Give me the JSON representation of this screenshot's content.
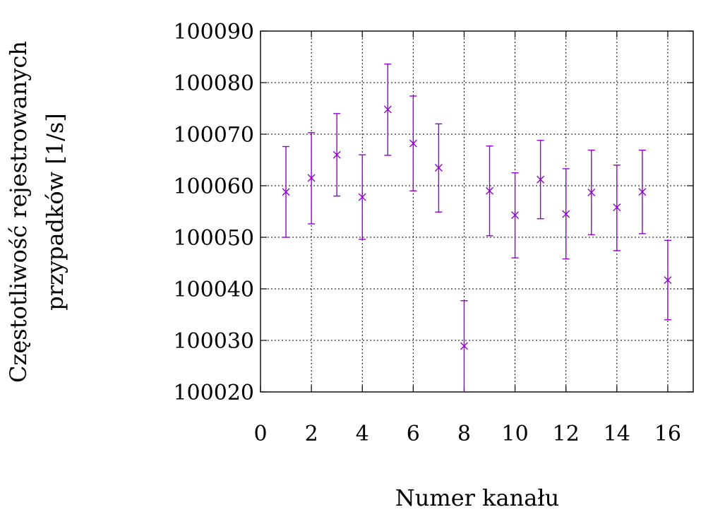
{
  "chart_data": {
    "type": "scatter",
    "title": "",
    "xlabel": "Numer kanału",
    "ylabel_lines": [
      "Częstotliwość rejestrowanych",
      "przypadków [1/s]"
    ],
    "xlim": [
      0,
      17
    ],
    "ylim": [
      100020,
      100090
    ],
    "xticks": [
      "0",
      "2",
      "4",
      "6",
      "8",
      "10",
      "12",
      "14",
      "16"
    ],
    "yticks": [
      "100020",
      "100030",
      "100040",
      "100050",
      "100060",
      "100070",
      "100080",
      "100090"
    ],
    "grid": true,
    "marker": "x",
    "color": "#9400d3",
    "points": [
      {
        "x": 1,
        "y": 100058.8,
        "err_low": 100050.0,
        "err_high": 100067.6
      },
      {
        "x": 2,
        "y": 100061.5,
        "err_low": 100052.6,
        "err_high": 100070.3
      },
      {
        "x": 3,
        "y": 100066.0,
        "err_low": 100058.0,
        "err_high": 100074.0
      },
      {
        "x": 4,
        "y": 100057.8,
        "err_low": 100049.6,
        "err_high": 100066.0
      },
      {
        "x": 5,
        "y": 100074.8,
        "err_low": 100065.9,
        "err_high": 100083.6
      },
      {
        "x": 6,
        "y": 100068.2,
        "err_low": 100059.0,
        "err_high": 100077.4
      },
      {
        "x": 7,
        "y": 100063.5,
        "err_low": 100054.9,
        "err_high": 100072.0
      },
      {
        "x": 8,
        "y": 100028.9,
        "err_low": 100020.0,
        "err_high": 100037.7
      },
      {
        "x": 9,
        "y": 100059.0,
        "err_low": 100050.3,
        "err_high": 100067.7
      },
      {
        "x": 10,
        "y": 100054.3,
        "err_low": 100046.0,
        "err_high": 100062.5
      },
      {
        "x": 11,
        "y": 100061.2,
        "err_low": 100053.6,
        "err_high": 100068.8
      },
      {
        "x": 12,
        "y": 100054.5,
        "err_low": 100045.8,
        "err_high": 100063.3
      },
      {
        "x": 13,
        "y": 100058.7,
        "err_low": 100050.5,
        "err_high": 100066.9
      },
      {
        "x": 14,
        "y": 100055.8,
        "err_low": 100047.4,
        "err_high": 100064.0
      },
      {
        "x": 15,
        "y": 100058.8,
        "err_low": 100050.7,
        "err_high": 100066.9
      },
      {
        "x": 16,
        "y": 100041.7,
        "err_low": 100034.0,
        "err_high": 100049.4
      }
    ]
  }
}
